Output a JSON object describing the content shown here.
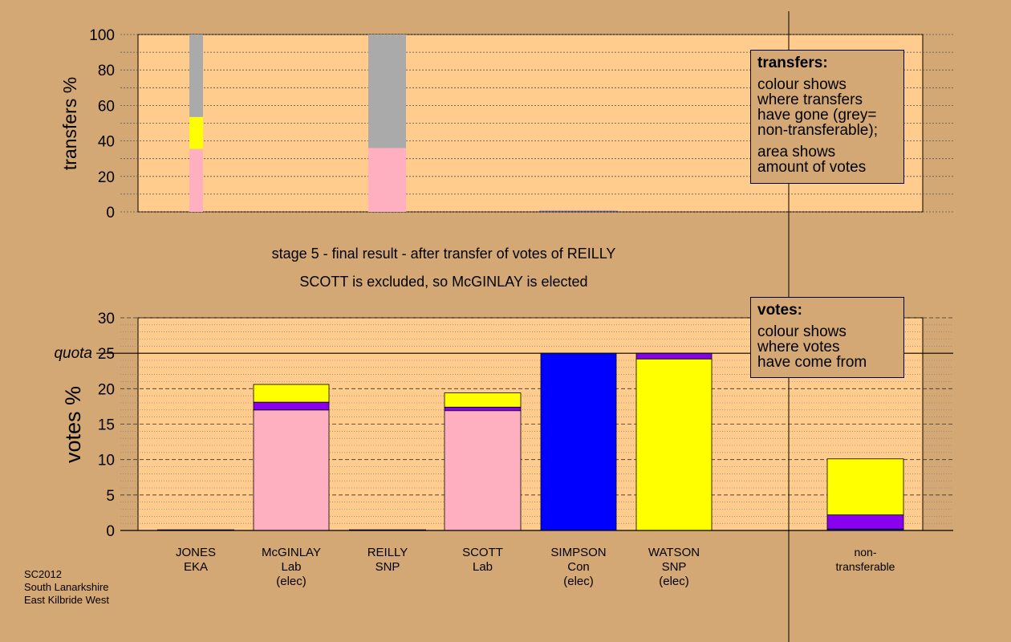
{
  "captions": {
    "line1": "stage 5 - final result - after transfer of votes of REILLY",
    "line2": "SCOTT is excluded, so McGINLAY is elected"
  },
  "legend_transfers": {
    "title": "transfers:",
    "line1": "colour shows",
    "line2": "where transfers",
    "line3": "have gone (grey=",
    "line4": "non-transferable);",
    "line5": "area shows",
    "line6": "amount of votes"
  },
  "legend_votes": {
    "title": "votes:",
    "line1": "colour shows",
    "line2": "where votes",
    "line3": "have come from"
  },
  "footer": {
    "line1": "SC2012",
    "line2": "South Lanarkshire",
    "line3": "East Kilbride West"
  },
  "colors": {
    "background": "#d4a874",
    "plot_bg": "#ffcc8e",
    "EKA": "#000000",
    "Lab": "#ffb0c0",
    "SNP": "#ffff00",
    "Con": "#0000ff",
    "Ind": "#8800ee",
    "non_transferable": "#aaaaaa"
  },
  "chart_data": [
    {
      "type": "bar",
      "name_key": "transfers",
      "ylabel": "transfers %",
      "ylim": [
        0,
        100
      ],
      "yticks": [
        0,
        20,
        40,
        60,
        80,
        100
      ],
      "bars": [
        {
          "candidate": "JONES",
          "segments": [
            {
              "party": "Lab",
              "value": 35.5
            },
            {
              "party": "SNP",
              "value": 18
            },
            {
              "party": "non_transferable",
              "value": 46.5
            }
          ]
        },
        {
          "candidate": "REILLY",
          "segments": [
            {
              "party": "Lab",
              "value": 36
            },
            {
              "party": "non_transferable",
              "value": 64
            }
          ]
        }
      ]
    },
    {
      "type": "bar",
      "name_key": "votes",
      "ylabel": "votes %",
      "ylim": [
        0,
        30
      ],
      "yticks": [
        0,
        5,
        10,
        15,
        20,
        25,
        30
      ],
      "quota": 25,
      "quota_label": "quota",
      "categories": [
        {
          "line1": "JONES",
          "line2": "EKA",
          "line3": ""
        },
        {
          "line1": "McGINLAY",
          "line2": "Lab",
          "line3": "(elec)"
        },
        {
          "line1": "REILLY",
          "line2": "SNP",
          "line3": ""
        },
        {
          "line1": "SCOTT",
          "line2": "Lab",
          "line3": ""
        },
        {
          "line1": "SIMPSON",
          "line2": "Con",
          "line3": "(elec)"
        },
        {
          "line1": "WATSON",
          "line2": "SNP",
          "line3": "(elec)"
        },
        {
          "line1": "non-",
          "line2": "transferable",
          "line3": ""
        }
      ],
      "bars": [
        {
          "candidate": "JONES",
          "segments": []
        },
        {
          "candidate": "McGINLAY",
          "segments": [
            {
              "party": "Lab",
              "value": 17
            },
            {
              "party": "Ind",
              "value": 1.1
            },
            {
              "party": "SNP",
              "value": 2.5
            }
          ]
        },
        {
          "candidate": "REILLY",
          "segments": []
        },
        {
          "candidate": "SCOTT",
          "segments": [
            {
              "party": "Lab",
              "value": 16.9
            },
            {
              "party": "Ind",
              "value": 0.5
            },
            {
              "party": "SNP",
              "value": 2
            }
          ]
        },
        {
          "candidate": "SIMPSON",
          "segments": [
            {
              "party": "Con",
              "value": 25
            }
          ]
        },
        {
          "candidate": "WATSON",
          "segments": [
            {
              "party": "SNP",
              "value": 24.2
            },
            {
              "party": "Ind",
              "value": 0.8
            }
          ]
        },
        {
          "candidate": "non-transferable",
          "segments": [
            {
              "party": "Con",
              "value": 0.2
            },
            {
              "party": "Ind",
              "value": 2
            },
            {
              "party": "SNP",
              "value": 7.9
            }
          ]
        }
      ]
    }
  ]
}
